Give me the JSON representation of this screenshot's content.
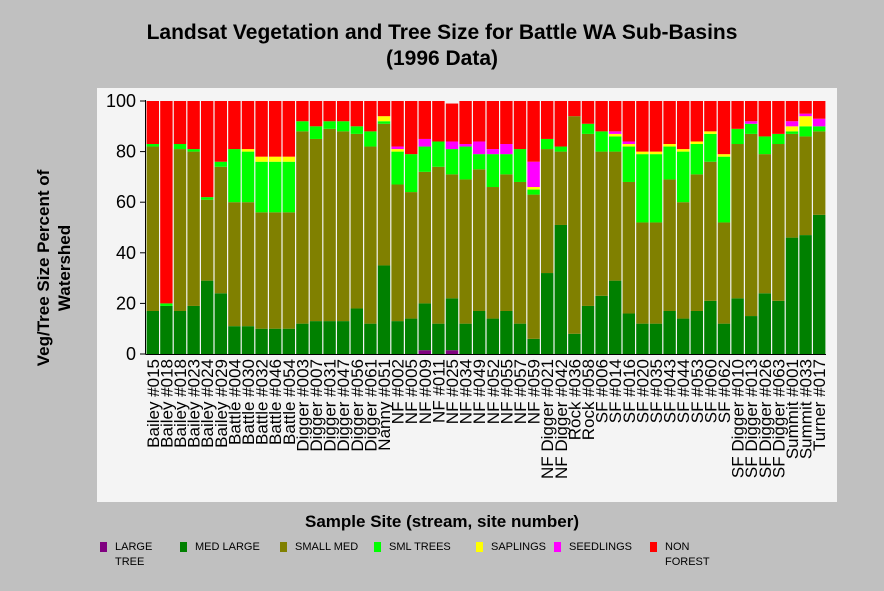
{
  "chart_data": {
    "type": "bar",
    "stacked": true,
    "title": [
      "Landsat Vegetation and Tree Size for Battle WA Sub-Basins",
      "(1996 Data)"
    ],
    "ylabel": [
      "Veg/Tree Size Percent of",
      "Watershed"
    ],
    "xlabel": "Sample Site (stream, site number)",
    "ylim": [
      0,
      100
    ],
    "yticks": [
      0,
      20,
      40,
      60,
      80,
      100
    ],
    "grid": false,
    "legend_position": "bottom",
    "colors": {
      "LARGE TREE": "#800080",
      "MED LARGE": "#008000",
      "SMALL MED": "#808000",
      "SML TREES": "#00ff00",
      "SAPLINGS": "#ffff00",
      "SEEDLINGS": "#ff00ff",
      "NON FOREST": "#ff0000"
    },
    "legend": [
      {
        "key": "LARGE TREE",
        "lines": [
          "LARGE",
          "TREE"
        ]
      },
      {
        "key": "MED LARGE",
        "lines": [
          "MED LARGE"
        ]
      },
      {
        "key": "SMALL MED",
        "lines": [
          "SMALL MED"
        ]
      },
      {
        "key": "SML TREES",
        "lines": [
          "SML TREES"
        ]
      },
      {
        "key": "SAPLINGS",
        "lines": [
          "SAPLINGS"
        ]
      },
      {
        "key": "SEEDLINGS",
        "lines": [
          "SEEDLINGS"
        ]
      },
      {
        "key": "NON FOREST",
        "lines": [
          "NON",
          "FOREST"
        ]
      }
    ],
    "categories": [
      "Bailey #015",
      "Bailey #018",
      "Bailey #018",
      "Bailey #023",
      "Bailey #024",
      "Bailey #029",
      "Battle #004",
      "Battle #030",
      "Battle #032",
      "Battle #046",
      "Battle #054",
      "Digger #003",
      "Digger #007",
      "Digger #031",
      "Digger #047",
      "Digger #056",
      "Digger #061",
      "Nanny #051",
      "NF #002",
      "NF #005",
      "NF #009",
      "NF #011",
      "NF #025",
      "NF #034",
      "NF #049",
      "NF #052",
      "NF #055",
      "NF #057",
      "NF #059",
      "NF Digger #021",
      "NF Digger #042",
      "Rock #036",
      "Rock #058",
      "SF #006",
      "SF #014",
      "SF #016",
      "SF #020",
      "SF #035",
      "SF #043",
      "SF #044",
      "SF #053",
      "SF #060",
      "SF #062",
      "SF Digger #010",
      "SF Digger #013",
      "SF Digger #026",
      "SF Digger #063",
      "Summit #001",
      "Summit #033",
      "Turner #017"
    ],
    "series": [
      {
        "name": "LARGE TREE",
        "values": [
          0,
          0,
          0,
          0,
          0,
          0,
          0,
          0,
          0,
          0,
          0,
          0,
          0,
          0,
          0,
          0,
          0,
          0,
          0,
          0,
          1.5,
          0,
          1.5,
          0,
          0,
          0,
          0,
          0,
          0,
          0,
          0,
          0,
          0,
          0,
          0,
          0,
          0,
          0,
          0,
          0,
          0,
          0,
          0,
          0,
          0,
          0,
          0,
          0,
          0,
          0
        ]
      },
      {
        "name": "MED LARGE",
        "values": [
          17,
          19,
          17,
          19,
          29,
          24,
          11,
          11,
          10,
          10,
          10,
          12,
          13,
          13,
          13,
          18,
          12,
          35,
          13,
          14,
          18.5,
          12,
          20.5,
          12,
          17,
          14,
          17,
          12,
          6,
          32,
          51,
          8,
          19,
          23,
          29,
          16,
          12,
          12,
          17,
          14,
          17,
          21,
          12,
          22,
          15,
          24,
          21,
          46,
          47,
          55
        ]
      },
      {
        "name": "SMALL MED",
        "values": [
          65,
          0,
          64,
          61,
          32,
          50,
          49,
          49,
          46,
          46,
          46,
          76,
          72,
          76,
          75,
          69,
          70,
          56,
          54,
          50,
          52,
          62,
          49,
          57,
          56,
          52,
          54,
          56,
          57,
          49,
          29,
          86,
          68,
          57,
          51,
          52,
          40,
          40,
          52,
          46,
          54,
          55,
          40,
          61,
          72,
          55,
          62,
          41,
          39,
          33
        ]
      },
      {
        "name": "SML TREES",
        "values": [
          1,
          1,
          2,
          1,
          1,
          2,
          21,
          20,
          20,
          20,
          20,
          4,
          5,
          3,
          4,
          3,
          6,
          1,
          13,
          15,
          10,
          10,
          10,
          13,
          6,
          13,
          8,
          13,
          2,
          4,
          2,
          0,
          4,
          8,
          6,
          14,
          27,
          27,
          13,
          20,
          12,
          11,
          26,
          6,
          4,
          7,
          4,
          1,
          4,
          2
        ]
      },
      {
        "name": "SAPLINGS",
        "values": [
          0,
          0,
          0,
          0,
          0,
          0,
          0,
          1,
          2,
          2,
          2,
          0,
          0,
          0,
          0,
          0,
          0,
          2,
          1,
          0,
          0,
          0,
          0,
          0,
          0,
          0,
          0,
          0,
          1,
          0,
          0,
          0,
          0,
          0,
          1,
          1,
          1,
          1,
          1,
          1,
          1,
          1,
          1,
          0,
          0,
          0,
          0,
          2,
          4,
          0
        ]
      },
      {
        "name": "SEEDLINGS",
        "values": [
          0,
          0,
          0,
          0,
          0,
          0,
          0,
          0,
          0,
          0,
          0,
          0,
          0,
          0,
          0,
          0,
          0,
          0,
          1,
          0,
          3,
          0,
          3,
          1,
          5,
          2,
          4,
          0,
          10,
          0,
          0,
          0,
          0,
          0,
          1,
          1,
          0,
          0,
          0,
          0,
          0,
          0,
          0,
          0,
          1,
          0,
          0,
          2,
          1,
          3
        ]
      },
      {
        "name": "NON FOREST",
        "values": [
          17,
          80,
          17,
          19,
          38,
          24,
          19,
          19,
          22,
          22,
          22,
          8,
          10,
          8,
          8,
          10,
          12,
          6,
          18,
          21,
          15,
          16,
          15,
          17,
          16,
          19,
          17,
          19,
          24,
          15,
          18,
          6,
          9,
          12,
          12,
          16,
          20,
          20,
          17,
          19,
          16,
          12,
          21,
          11,
          8,
          14,
          13,
          8,
          5,
          7
        ]
      }
    ]
  }
}
